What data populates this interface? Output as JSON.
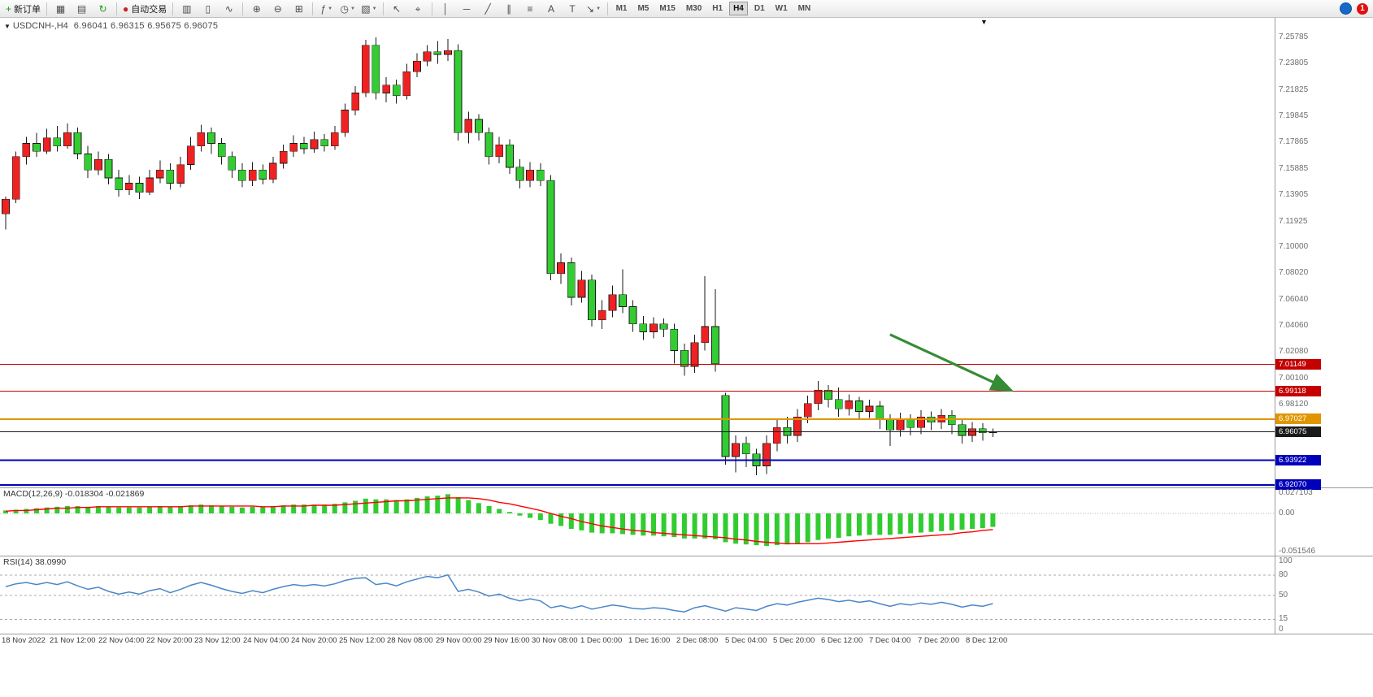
{
  "toolbar": {
    "groups": [
      [
        {
          "name": "new-order-button",
          "glyph": "+",
          "glyph_color": "#1a9c1a",
          "label": "新订单"
        }
      ],
      [
        {
          "name": "new-chart-button",
          "glyph": "▦"
        },
        {
          "name": "profiles-button",
          "glyph": "▤"
        },
        {
          "name": "refresh-button",
          "glyph": "↻",
          "glyph_color": "#1a9c1a"
        }
      ],
      [
        {
          "name": "autotrading-button",
          "glyph": "●",
          "glyph_color": "#cc2222",
          "label": "自动交易"
        }
      ],
      [
        {
          "name": "bar-chart-button",
          "glyph": "▥"
        },
        {
          "name": "candlestick-chart-button",
          "glyph": "▯"
        },
        {
          "name": "line-chart-button",
          "glyph": "∿"
        }
      ],
      [
        {
          "name": "zoom-in-button",
          "glyph": "⊕"
        },
        {
          "name": "zoom-out-button",
          "glyph": "⊖"
        },
        {
          "name": "tile-windows-button",
          "glyph": "⊞"
        }
      ],
      [
        {
          "name": "indicators-button",
          "glyph": "ƒ",
          "dropdown": true
        },
        {
          "name": "periods-button",
          "glyph": "◷",
          "dropdown": true
        },
        {
          "name": "templates-button",
          "glyph": "▧",
          "dropdown": true
        }
      ],
      [
        {
          "name": "cursor-button",
          "glyph": "↖"
        },
        {
          "name": "crosshair-button",
          "glyph": "⌖"
        }
      ],
      [
        {
          "name": "vertical-line-button",
          "glyph": "│"
        },
        {
          "name": "horizontal-line-button",
          "glyph": "─"
        },
        {
          "name": "trendline-button",
          "glyph": "╱"
        },
        {
          "name": "channel-button",
          "glyph": "∥"
        },
        {
          "name": "fibonacci-button",
          "glyph": "≡"
        },
        {
          "name": "text-button",
          "glyph": "A"
        },
        {
          "name": "label-button",
          "glyph": "T"
        },
        {
          "name": "arrows-button",
          "glyph": "↘",
          "dropdown": true
        }
      ]
    ],
    "timeframes": [
      {
        "label": "M1"
      },
      {
        "label": "M5"
      },
      {
        "label": "M15"
      },
      {
        "label": "M30"
      },
      {
        "label": "H1"
      },
      {
        "label": "H4",
        "active": true
      },
      {
        "label": "D1"
      },
      {
        "label": "W1"
      },
      {
        "label": "MN"
      }
    ],
    "right": {
      "notification_count": "1"
    }
  },
  "chart": {
    "title": "USDCNH-,H4",
    "ohlc": "6.96041 6.96315 6.95675 6.96075"
  },
  "chart_data": {
    "type": "candlestick",
    "symbol": "USDCNH-",
    "timeframe": "H4",
    "colors": {
      "bull": "#ee2222",
      "bear": "#33cc33",
      "wick": "#1a1a1a"
    },
    "price_axis_labels": [
      "7.25785",
      "7.23805",
      "7.21825",
      "7.19845",
      "7.17865",
      "7.15885",
      "7.13905",
      "7.11925",
      "7.10000",
      "7.08020",
      "7.06040",
      "7.04060",
      "7.02080",
      "7.00100",
      "6.98120"
    ],
    "price_tags": [
      {
        "text": "7.01149",
        "price": 7.01149,
        "bg": "#c40000"
      },
      {
        "text": "6.99118",
        "price": 6.99118,
        "bg": "#c40000"
      },
      {
        "text": "6.97027",
        "price": 6.97027,
        "bg": "#e09600"
      },
      {
        "text": "6.96075",
        "price": 6.96075,
        "bg": "#1a1a1a"
      },
      {
        "text": "6.93922",
        "price": 6.93922,
        "bg": "#0000bb"
      },
      {
        "text": "6.92070",
        "price": 6.9207,
        "bg": "#0000bb"
      }
    ],
    "levels": [
      {
        "price": 7.01149,
        "color": "#c40000",
        "width": 1
      },
      {
        "price": 6.99118,
        "color": "#c40000",
        "width": 1
      },
      {
        "price": 6.97027,
        "color": "#e09600",
        "width": 2
      },
      {
        "price": 6.96075,
        "color": "#1a1a1a",
        "width": 1
      },
      {
        "price": 6.93922,
        "color": "#0000bb",
        "width": 2
      },
      {
        "price": 6.9207,
        "color": "#0000bb",
        "width": 2
      }
    ],
    "arrow": {
      "x1_index": 86,
      "price1": 7.034,
      "x2_index": 97.6,
      "price2": 6.9925,
      "color": "#368c36"
    },
    "x_labels": [
      "18 Nov 2022",
      "21 Nov 12:00",
      "22 Nov 04:00",
      "22 Nov 20:00",
      "23 Nov 12:00",
      "24 Nov 04:00",
      "24 Nov 20:00",
      "25 Nov 12:00",
      "28 Nov 08:00",
      "29 Nov 00:00",
      "29 Nov 16:00",
      "30 Nov 08:00",
      "1 Dec 00:00",
      "1 Dec 16:00",
      "2 Dec 08:00",
      "5 Dec 04:00",
      "5 Dec 20:00",
      "6 Dec 12:00",
      "7 Dec 04:00",
      "7 Dec 20:00",
      "8 Dec 12:00"
    ],
    "candles": [
      [
        7.125,
        7.138,
        7.113,
        7.136
      ],
      [
        7.136,
        7.172,
        7.133,
        7.168
      ],
      [
        7.168,
        7.183,
        7.162,
        7.178
      ],
      [
        7.178,
        7.186,
        7.168,
        7.172
      ],
      [
        7.172,
        7.189,
        7.17,
        7.182
      ],
      [
        7.182,
        7.191,
        7.172,
        7.176
      ],
      [
        7.176,
        7.193,
        7.174,
        7.186
      ],
      [
        7.186,
        7.19,
        7.166,
        7.17
      ],
      [
        7.17,
        7.176,
        7.152,
        7.158
      ],
      [
        7.158,
        7.172,
        7.154,
        7.166
      ],
      [
        7.166,
        7.17,
        7.147,
        7.152
      ],
      [
        7.152,
        7.158,
        7.138,
        7.143
      ],
      [
        7.143,
        7.154,
        7.139,
        7.148
      ],
      [
        7.148,
        7.153,
        7.136,
        7.141
      ],
      [
        7.141,
        7.158,
        7.139,
        7.152
      ],
      [
        7.152,
        7.165,
        7.148,
        7.158
      ],
      [
        7.158,
        7.163,
        7.143,
        7.148
      ],
      [
        7.148,
        7.168,
        7.145,
        7.162
      ],
      [
        7.162,
        7.183,
        7.158,
        7.176
      ],
      [
        7.176,
        7.192,
        7.172,
        7.186
      ],
      [
        7.186,
        7.19,
        7.17,
        7.178
      ],
      [
        7.178,
        7.182,
        7.162,
        7.168
      ],
      [
        7.168,
        7.172,
        7.152,
        7.158
      ],
      [
        7.158,
        7.163,
        7.145,
        7.15
      ],
      [
        7.15,
        7.164,
        7.146,
        7.158
      ],
      [
        7.158,
        7.162,
        7.147,
        7.151
      ],
      [
        7.151,
        7.168,
        7.148,
        7.163
      ],
      [
        7.163,
        7.177,
        7.159,
        7.172
      ],
      [
        7.172,
        7.184,
        7.168,
        7.178
      ],
      [
        7.178,
        7.183,
        7.17,
        7.174
      ],
      [
        7.174,
        7.187,
        7.171,
        7.181
      ],
      [
        7.181,
        7.185,
        7.172,
        7.176
      ],
      [
        7.176,
        7.191,
        7.173,
        7.186
      ],
      [
        7.186,
        7.208,
        7.183,
        7.203
      ],
      [
        7.203,
        7.221,
        7.199,
        7.216
      ],
      [
        7.216,
        7.256,
        7.213,
        7.252
      ],
      [
        7.252,
        7.2578,
        7.211,
        7.216
      ],
      [
        7.216,
        7.228,
        7.209,
        7.222
      ],
      [
        7.222,
        7.226,
        7.208,
        7.214
      ],
      [
        7.214,
        7.238,
        7.211,
        7.232
      ],
      [
        7.232,
        7.246,
        7.228,
        7.24
      ],
      [
        7.24,
        7.252,
        7.236,
        7.247
      ],
      [
        7.247,
        7.255,
        7.238,
        7.245
      ],
      [
        7.245,
        7.2565,
        7.24,
        7.248
      ],
      [
        7.248,
        7.2525,
        7.18,
        7.186
      ],
      [
        7.186,
        7.202,
        7.178,
        7.196
      ],
      [
        7.196,
        7.2,
        7.18,
        7.186
      ],
      [
        7.186,
        7.19,
        7.162,
        7.168
      ],
      [
        7.168,
        7.183,
        7.163,
        7.177
      ],
      [
        7.177,
        7.181,
        7.155,
        7.16
      ],
      [
        7.16,
        7.166,
        7.144,
        7.15
      ],
      [
        7.15,
        7.164,
        7.145,
        7.158
      ],
      [
        7.158,
        7.163,
        7.146,
        7.15
      ],
      [
        7.15,
        7.154,
        7.075,
        7.08
      ],
      [
        7.08,
        7.095,
        7.072,
        7.088
      ],
      [
        7.088,
        7.092,
        7.056,
        7.062
      ],
      [
        7.062,
        7.082,
        7.058,
        7.075
      ],
      [
        7.075,
        7.079,
        7.04,
        7.045
      ],
      [
        7.045,
        7.06,
        7.038,
        7.052
      ],
      [
        7.052,
        7.071,
        7.047,
        7.064
      ],
      [
        7.064,
        7.083,
        7.05,
        7.055
      ],
      [
        7.055,
        7.06,
        7.036,
        7.042
      ],
      [
        7.042,
        7.048,
        7.03,
        7.036
      ],
      [
        7.036,
        7.047,
        7.031,
        7.042
      ],
      [
        7.042,
        7.046,
        7.032,
        7.038
      ],
      [
        7.038,
        7.042,
        7.012,
        7.022
      ],
      [
        7.022,
        7.027,
        7.003,
        7.01
      ],
      [
        7.01,
        7.034,
        7.005,
        7.028
      ],
      [
        7.028,
        7.078,
        7.022,
        7.04
      ],
      [
        7.04,
        7.068,
        7.006,
        7.012
      ],
      [
        6.988,
        6.99,
        6.936,
        6.942
      ],
      [
        6.942,
        6.958,
        6.93,
        6.952
      ],
      [
        6.952,
        6.957,
        6.934,
        6.944
      ],
      [
        6.944,
        6.948,
        6.928,
        6.935
      ],
      [
        6.935,
        6.958,
        6.929,
        6.952
      ],
      [
        6.952,
        6.97,
        6.946,
        6.964
      ],
      [
        6.964,
        6.972,
        6.952,
        6.958
      ],
      [
        6.958,
        6.978,
        6.953,
        6.972
      ],
      [
        6.972,
        6.988,
        6.967,
        6.982
      ],
      [
        6.982,
        6.999,
        6.977,
        6.992
      ],
      [
        6.992,
        6.996,
        6.979,
        6.985
      ],
      [
        6.985,
        6.994,
        6.972,
        6.978
      ],
      [
        6.978,
        6.989,
        6.973,
        6.984
      ],
      [
        6.984,
        6.987,
        6.97,
        6.976
      ],
      [
        6.976,
        6.985,
        6.971,
        6.98
      ],
      [
        6.98,
        6.984,
        6.963,
        6.97
      ],
      [
        6.97,
        6.974,
        6.95,
        6.962
      ],
      [
        6.962,
        6.975,
        6.957,
        6.97
      ],
      [
        6.97,
        6.974,
        6.958,
        6.964
      ],
      [
        6.964,
        6.977,
        6.959,
        6.972
      ],
      [
        6.972,
        6.976,
        6.962,
        6.968
      ],
      [
        6.968,
        6.978,
        6.963,
        6.973
      ],
      [
        6.973,
        6.977,
        6.959,
        6.966
      ],
      [
        6.966,
        6.97,
        6.952,
        6.958
      ],
      [
        6.958,
        6.968,
        6.953,
        6.963
      ],
      [
        6.963,
        6.967,
        6.954,
        6.96
      ],
      [
        6.96041,
        6.96315,
        6.95675,
        6.96075
      ]
    ],
    "macd": {
      "label": "MACD(12,26,9) -0.018304 -0.021869",
      "value": -0.018304,
      "signal_value": -0.021869,
      "histogram_color": "#30cc30",
      "signal_color": "#ff0000",
      "axis_labels": [
        "0.027103",
        "0.00",
        "-0.051546"
      ],
      "axis_values": [
        0.027103,
        0,
        -0.051546
      ],
      "histogram": [
        0.004,
        0.005,
        0.006,
        0.007,
        0.008,
        0.009,
        0.01,
        0.01,
        0.009,
        0.01,
        0.009,
        0.008,
        0.008,
        0.008,
        0.009,
        0.01,
        0.009,
        0.01,
        0.011,
        0.012,
        0.011,
        0.01,
        0.009,
        0.008,
        0.009,
        0.009,
        0.01,
        0.011,
        0.012,
        0.012,
        0.012,
        0.012,
        0.013,
        0.015,
        0.017,
        0.02,
        0.019,
        0.019,
        0.018,
        0.019,
        0.021,
        0.023,
        0.024,
        0.026,
        0.022,
        0.018,
        0.014,
        0.01,
        0.006,
        0.002,
        -0.003,
        -0.006,
        -0.009,
        -0.014,
        -0.017,
        -0.021,
        -0.023,
        -0.026,
        -0.027,
        -0.027,
        -0.028,
        -0.029,
        -0.03,
        -0.03,
        -0.031,
        -0.032,
        -0.034,
        -0.034,
        -0.034,
        -0.035,
        -0.039,
        -0.041,
        -0.042,
        -0.043,
        -0.044,
        -0.043,
        -0.042,
        -0.041,
        -0.039,
        -0.036,
        -0.034,
        -0.033,
        -0.031,
        -0.03,
        -0.029,
        -0.029,
        -0.029,
        -0.028,
        -0.027,
        -0.026,
        -0.025,
        -0.024,
        -0.023,
        -0.022,
        -0.021,
        -0.02,
        -0.0183
      ],
      "signal": [
        0.003,
        0.004,
        0.004,
        0.005,
        0.006,
        0.007,
        0.007,
        0.008,
        0.008,
        0.009,
        0.009,
        0.009,
        0.009,
        0.009,
        0.009,
        0.009,
        0.009,
        0.009,
        0.01,
        0.01,
        0.01,
        0.01,
        0.01,
        0.01,
        0.01,
        0.009,
        0.009,
        0.01,
        0.01,
        0.01,
        0.011,
        0.011,
        0.011,
        0.012,
        0.013,
        0.014,
        0.015,
        0.016,
        0.017,
        0.017,
        0.018,
        0.019,
        0.02,
        0.021,
        0.021,
        0.021,
        0.02,
        0.018,
        0.015,
        0.013,
        0.01,
        0.007,
        0.004,
        0.0,
        -0.004,
        -0.007,
        -0.011,
        -0.014,
        -0.017,
        -0.019,
        -0.021,
        -0.023,
        -0.024,
        -0.026,
        -0.027,
        -0.028,
        -0.029,
        -0.03,
        -0.031,
        -0.032,
        -0.033,
        -0.035,
        -0.036,
        -0.038,
        -0.039,
        -0.04,
        -0.041,
        -0.041,
        -0.041,
        -0.041,
        -0.04,
        -0.039,
        -0.038,
        -0.037,
        -0.036,
        -0.035,
        -0.034,
        -0.033,
        -0.032,
        -0.031,
        -0.03,
        -0.029,
        -0.028,
        -0.026,
        -0.025,
        -0.023,
        -0.0219
      ]
    },
    "rsi": {
      "label": "RSI(14) 38.0990",
      "value": 38.099,
      "line_color": "#4a86c8",
      "levels": [
        80,
        50,
        15
      ],
      "axis_labels": [
        "100",
        "80",
        "50",
        "15",
        "0"
      ],
      "axis_values": [
        100,
        80,
        50,
        15,
        0
      ],
      "values": [
        63,
        67,
        69,
        66,
        69,
        66,
        70,
        64,
        59,
        62,
        56,
        52,
        55,
        52,
        57,
        60,
        54,
        59,
        65,
        69,
        65,
        60,
        56,
        53,
        57,
        54,
        59,
        63,
        66,
        64,
        66,
        64,
        67,
        72,
        75,
        76,
        66,
        68,
        64,
        70,
        74,
        78,
        76,
        80,
        56,
        59,
        55,
        49,
        52,
        46,
        42,
        45,
        42,
        32,
        35,
        31,
        35,
        30,
        33,
        36,
        34,
        31,
        30,
        32,
        31,
        28,
        26,
        32,
        35,
        31,
        27,
        32,
        30,
        28,
        34,
        38,
        36,
        40,
        43,
        46,
        44,
        41,
        43,
        40,
        42,
        38,
        34,
        38,
        36,
        39,
        37,
        40,
        37,
        33,
        36,
        34,
        38.1
      ]
    }
  }
}
